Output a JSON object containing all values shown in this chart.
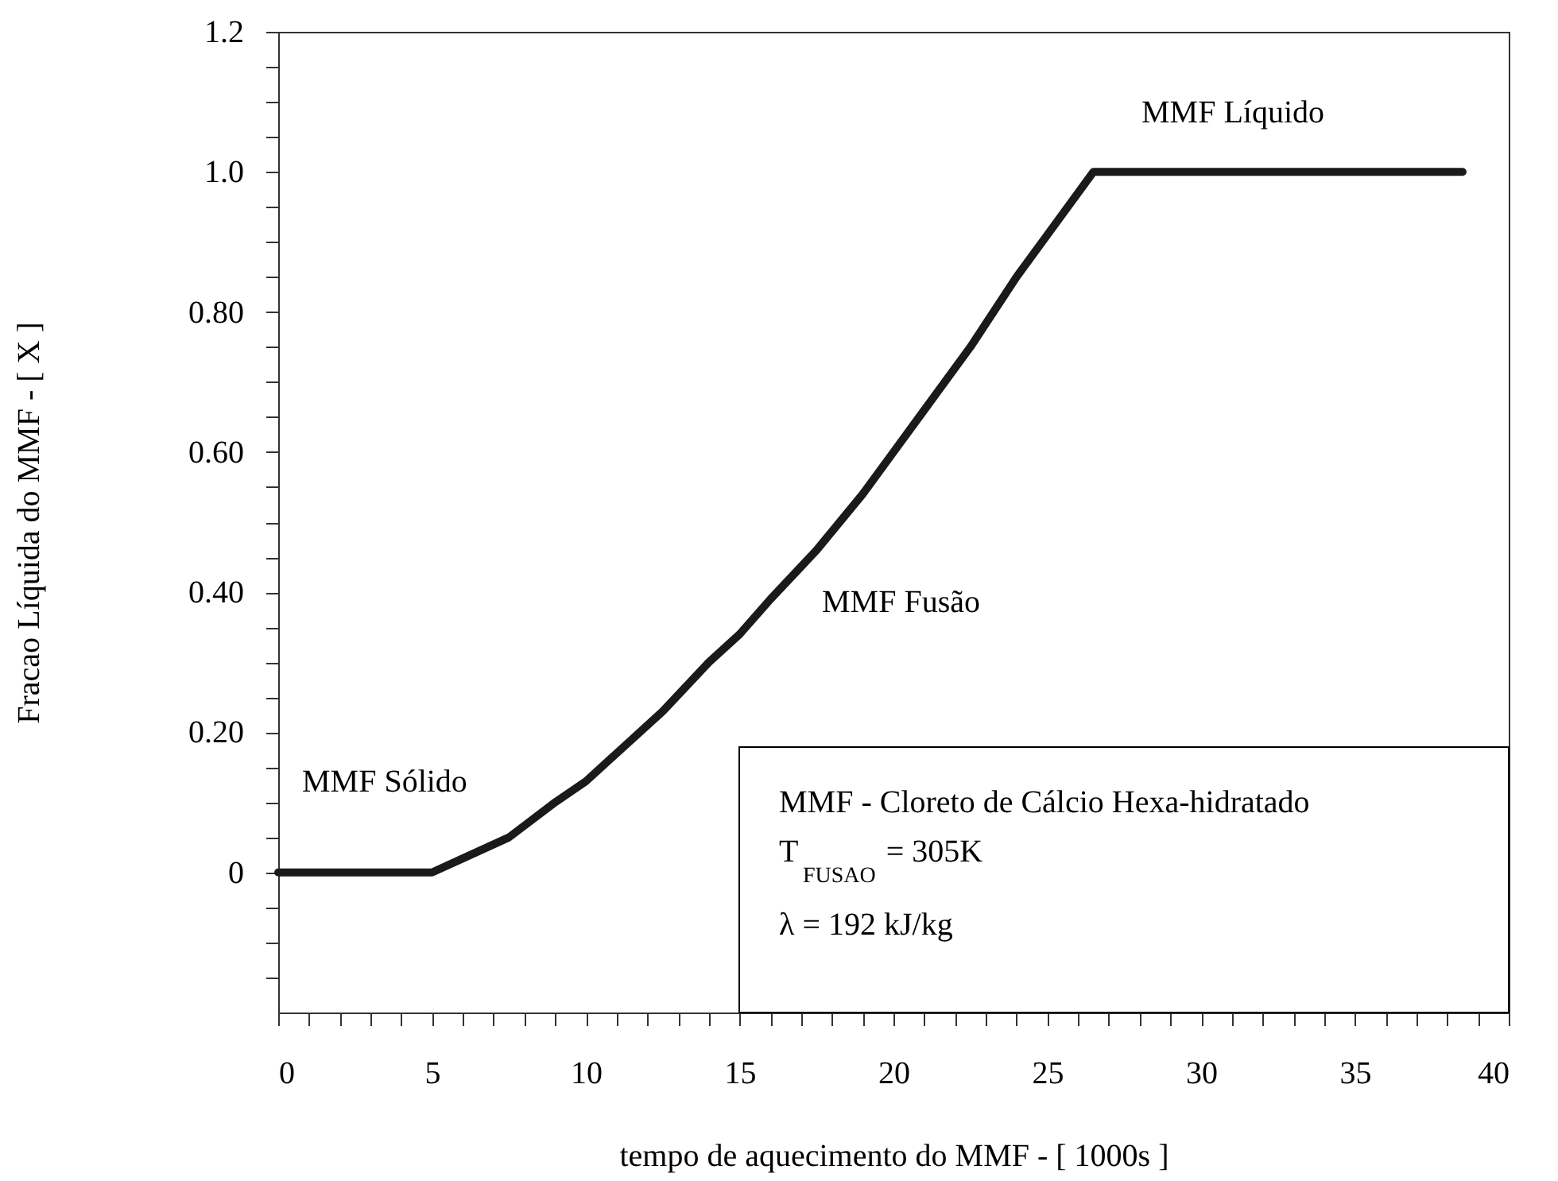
{
  "chart_data": {
    "type": "line",
    "xlabel": "tempo de aquecimento do MMF - [ 1000s ]",
    "ylabel": "Fracao Líquida do MMF - [ X ]",
    "x": [
      0,
      2.5,
      5,
      6,
      7.5,
      9,
      10,
      11,
      12.5,
      14,
      15,
      16,
      17.5,
      19,
      20,
      21,
      22.5,
      24,
      25,
      26.5,
      30,
      35,
      38.5
    ],
    "series": [
      {
        "color": "#1a1a1a",
        "values": [
          0,
          0,
          0,
          0.02,
          0.05,
          0.1,
          0.13,
          0.17,
          0.23,
          0.3,
          0.34,
          0.39,
          0.46,
          0.54,
          0.6,
          0.66,
          0.75,
          0.85,
          0.91,
          1.0,
          1.0,
          1.0,
          1.0
        ]
      }
    ],
    "xlim": [
      0,
      40
    ],
    "ylim": [
      -0.2,
      1.2
    ],
    "xticks": [
      0,
      {
        "value": 1,
        "label": null
      },
      {
        "value": 2,
        "label": null
      },
      {
        "value": 3,
        "label": null
      },
      {
        "value": 4,
        "label": null
      },
      5,
      {
        "value": 6,
        "label": null
      },
      {
        "value": 7,
        "label": null
      },
      {
        "value": 8,
        "label": null
      },
      {
        "value": 9,
        "label": null
      },
      10,
      {
        "value": 11,
        "label": null
      },
      {
        "value": 12,
        "label": null
      },
      {
        "value": 13,
        "label": null
      },
      {
        "value": 14,
        "label": null
      },
      15,
      {
        "value": 16,
        "label": null
      },
      {
        "value": 17,
        "label": null
      },
      {
        "value": 18,
        "label": null
      },
      {
        "value": 19,
        "label": null
      },
      20,
      {
        "value": 21,
        "label": null
      },
      {
        "value": 22,
        "label": null
      },
      {
        "value": 23,
        "label": null
      },
      {
        "value": 24,
        "label": null
      },
      25,
      {
        "value": 26,
        "label": null
      },
      {
        "value": 27,
        "label": null
      },
      {
        "value": 28,
        "label": null
      },
      {
        "value": 29,
        "label": null
      },
      30,
      {
        "value": 31,
        "label": null
      },
      {
        "value": 32,
        "label": null
      },
      {
        "value": 33,
        "label": null
      },
      {
        "value": 34,
        "label": null
      },
      35,
      {
        "value": 36,
        "label": null
      },
      {
        "value": 37,
        "label": null
      },
      {
        "value": 38,
        "label": null
      },
      {
        "value": 39,
        "label": null
      },
      40
    ],
    "yticks": [
      {
        "value": -0.15,
        "label": null
      },
      {
        "value": -0.1,
        "label": null
      },
      {
        "value": -0.05,
        "label": null
      },
      0,
      {
        "value": 0.05,
        "label": null
      },
      {
        "value": 0.1,
        "label": null
      },
      {
        "value": 0.15,
        "label": null
      },
      {
        "value": 0.2,
        "label": "0.20"
      },
      {
        "value": 0.25,
        "label": null
      },
      {
        "value": 0.3,
        "label": null
      },
      {
        "value": 0.35,
        "label": null
      },
      {
        "value": 0.4,
        "label": "0.40"
      },
      {
        "value": 0.45,
        "label": null
      },
      {
        "value": 0.5,
        "label": null
      },
      {
        "value": 0.55,
        "label": null
      },
      {
        "value": 0.6,
        "label": "0.60"
      },
      {
        "value": 0.65,
        "label": null
      },
      {
        "value": 0.7,
        "label": null
      },
      {
        "value": 0.75,
        "label": null
      },
      {
        "value": 0.8,
        "label": "0.80"
      },
      {
        "value": 0.85,
        "label": null
      },
      {
        "value": 0.9,
        "label": null
      },
      {
        "value": 0.95,
        "label": null
      },
      {
        "value": 1,
        "label": "1.0"
      },
      {
        "value": 1.05,
        "label": null
      },
      {
        "value": 1.1,
        "label": null
      },
      {
        "value": 1.15,
        "label": null
      },
      1.2
    ],
    "annotations": [
      "MMF Sólido",
      "MMF Fusão",
      "MMF Líquido",
      "MMF - Cloreto de Cálcio Hexa-hidratado",
      "T$_{FUSAO}$ = 305K",
      "λ = 192 kJ/kg"
    ],
    "grid": false,
    "marker": "none",
    "line_style": "solid"
  }
}
